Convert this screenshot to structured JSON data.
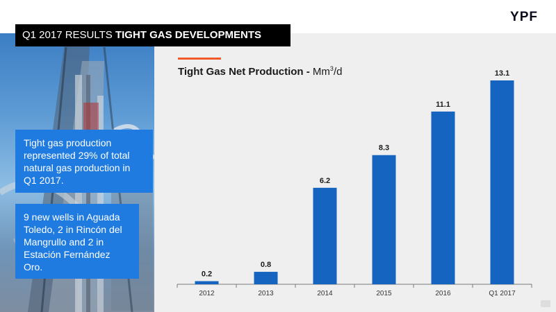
{
  "brand": {
    "logo": "YPF"
  },
  "slide": {
    "title_regular": "Q1 2017 RESULTS",
    "title_bold": "TIGHT GAS DEVELOPMENTS"
  },
  "callouts": [
    "Tight gas production represented 29% of total natural gas production in Q1 2017.",
    "9 new wells in Aguada Toledo, 2 in Rincón del Mangrullo and 2 in Estación Fernández Oro."
  ],
  "chart_data": {
    "type": "bar",
    "title": "Tight Gas Net Production",
    "unit_base": "Mm",
    "unit_sup": "3",
    "unit_suffix": "/d",
    "categories": [
      "2012",
      "2013",
      "2014",
      "2015",
      "2016",
      "Q1 2017"
    ],
    "values": [
      0.2,
      0.8,
      6.2,
      8.3,
      11.1,
      13.1
    ],
    "data_labels": [
      "0.2",
      "0.8",
      "6.2",
      "8.3",
      "11.1",
      "13.1"
    ],
    "ylim": [
      0,
      13.1
    ],
    "grid": false,
    "legend": "none",
    "bar_color": "#1565c0"
  }
}
